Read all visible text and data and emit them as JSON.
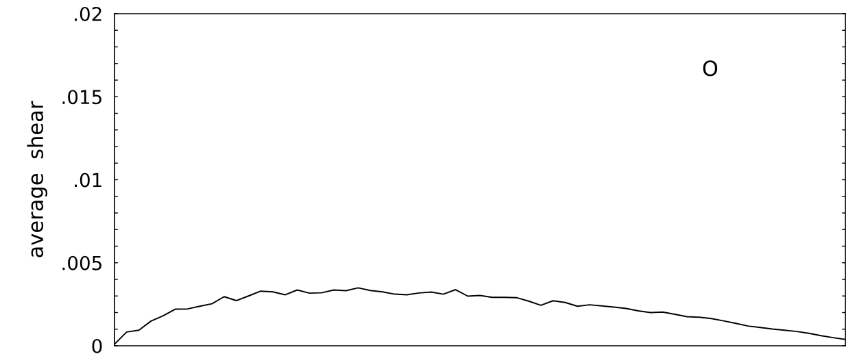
{
  "chart_data": {
    "type": "line",
    "ylabel": "average  shear",
    "annotations": [
      "O"
    ],
    "categories": [
      null,
      null,
      null,
      null,
      null,
      null,
      null,
      null,
      null,
      null,
      null,
      null,
      null,
      null,
      null,
      null,
      null,
      null,
      null,
      null,
      null,
      null,
      null,
      null,
      null,
      null,
      null,
      null,
      null,
      null,
      null,
      null,
      null,
      null,
      null,
      null,
      null,
      null,
      null,
      null,
      null,
      null,
      null,
      null,
      null,
      null,
      null,
      null,
      null,
      null,
      null,
      null,
      null,
      null,
      null,
      null,
      null,
      null,
      null,
      null,
      null
    ],
    "series": [
      {
        "color": "#000000",
        "values": [
          0.0001,
          0.00083,
          0.00094,
          0.00149,
          0.00181,
          0.00221,
          0.00222,
          0.00238,
          0.00253,
          0.00296,
          0.00272,
          0.003,
          0.00329,
          0.00325,
          0.00307,
          0.00336,
          0.00317,
          0.00319,
          0.00336,
          0.00332,
          0.00349,
          0.00333,
          0.00325,
          0.00311,
          0.00307,
          0.00318,
          0.00324,
          0.00311,
          0.00338,
          0.00299,
          0.00303,
          0.00292,
          0.00292,
          0.0029,
          0.00269,
          0.00244,
          0.00271,
          0.00261,
          0.00238,
          0.00247,
          0.0024,
          0.00233,
          0.00225,
          0.0021,
          0.002,
          0.00203,
          0.0019,
          0.00175,
          0.00172,
          0.00164,
          0.0015,
          0.00135,
          0.00119,
          0.0011,
          0.00101,
          0.00094,
          0.00086,
          0.00075,
          0.00061,
          0.00049,
          0.00038
        ]
      }
    ],
    "ylim": [
      0,
      0.02
    ],
    "yticks": [
      {
        "value": 0,
        "label": "0"
      },
      {
        "value": 0.001,
        "label": null
      },
      {
        "value": 0.002,
        "label": null
      },
      {
        "value": 0.003,
        "label": null
      },
      {
        "value": 0.004,
        "label": null
      },
      {
        "value": 0.005,
        "label": ".005"
      },
      {
        "value": 0.006,
        "label": null
      },
      {
        "value": 0.007,
        "label": null
      },
      {
        "value": 0.008,
        "label": null
      },
      {
        "value": 0.009,
        "label": null
      },
      {
        "value": 0.01,
        "label": ".01"
      },
      {
        "value": 0.011,
        "label": null
      },
      {
        "value": 0.012,
        "label": null
      },
      {
        "value": 0.013,
        "label": null
      },
      {
        "value": 0.014,
        "label": null
      },
      {
        "value": 0.015,
        "label": ".015"
      },
      {
        "value": 0.016,
        "label": null
      },
      {
        "value": 0.017,
        "label": null
      },
      {
        "value": 0.018,
        "label": null
      },
      {
        "value": 0.019,
        "label": null
      },
      {
        "value": 0.02,
        "label": ".02"
      }
    ],
    "grid": false,
    "legend": false,
    "marker": "none",
    "line_style": "solid"
  }
}
